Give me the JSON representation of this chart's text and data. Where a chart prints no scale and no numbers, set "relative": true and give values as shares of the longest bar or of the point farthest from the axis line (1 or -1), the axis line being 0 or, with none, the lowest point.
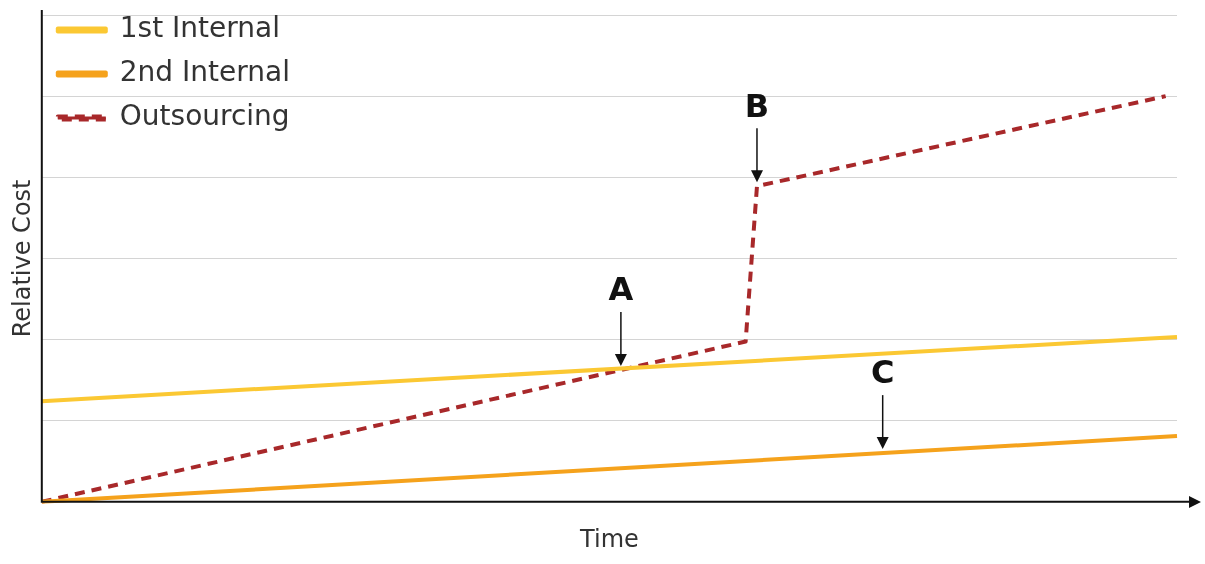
{
  "chart_data": {
    "type": "line",
    "xlabel": "Time",
    "ylabel": "Relative Cost",
    "relative": true,
    "grid": "y",
    "legend": "top left",
    "marker": "none",
    "categories": [
      null,
      null,
      null,
      null,
      null,
      null,
      null,
      null,
      null,
      null,
      null,
      null,
      null,
      null,
      null,
      null,
      null,
      null,
      null,
      null,
      null,
      null,
      null,
      null,
      null,
      null,
      null,
      null,
      null,
      null,
      null,
      null,
      null,
      null,
      null,
      null,
      null,
      null,
      null,
      null,
      null,
      null,
      null,
      null,
      null,
      null,
      null,
      null,
      null,
      null,
      null,
      null,
      null,
      null,
      null,
      null,
      null,
      null,
      null,
      null,
      null,
      null,
      null,
      null,
      null,
      null,
      null,
      null,
      null,
      null,
      null,
      null,
      null,
      null,
      null,
      null,
      null,
      null,
      null,
      null,
      null,
      null,
      null,
      null,
      null,
      null,
      null,
      null,
      null,
      null,
      null,
      null,
      null,
      null,
      null,
      null,
      null,
      null,
      null,
      null,
      null
    ],
    "series": [
      {
        "name": "1st Internal",
        "color": "#fbc833",
        "line_style": "solid",
        "values": [
          0.248,
          null,
          null,
          null,
          null,
          null,
          null,
          null,
          null,
          null,
          null,
          null,
          null,
          null,
          null,
          null,
          null,
          null,
          null,
          null,
          null,
          null,
          null,
          null,
          null,
          null,
          null,
          null,
          null,
          null,
          null,
          null,
          null,
          null,
          null,
          null,
          null,
          null,
          null,
          null,
          null,
          null,
          null,
          null,
          null,
          null,
          null,
          null,
          null,
          null,
          null,
          null,
          null,
          null,
          null,
          null,
          null,
          null,
          null,
          null,
          null,
          null,
          null,
          null,
          null,
          null,
          null,
          null,
          null,
          null,
          null,
          null,
          null,
          null,
          null,
          null,
          null,
          null,
          null,
          null,
          null,
          null,
          null,
          null,
          null,
          null,
          null,
          null,
          null,
          null,
          null,
          null,
          null,
          null,
          null,
          null,
          null,
          null,
          null,
          null,
          0.406
        ]
      },
      {
        "name": "2nd Internal",
        "color": "#f5a21c",
        "line_style": "solid",
        "values": [
          0,
          null,
          null,
          null,
          null,
          null,
          null,
          null,
          null,
          null,
          null,
          null,
          null,
          null,
          null,
          null,
          null,
          null,
          null,
          null,
          null,
          null,
          null,
          null,
          null,
          null,
          null,
          null,
          null,
          null,
          null,
          null,
          null,
          null,
          null,
          null,
          null,
          null,
          null,
          null,
          null,
          null,
          null,
          null,
          null,
          null,
          null,
          null,
          null,
          null,
          null,
          null,
          null,
          null,
          null,
          null,
          null,
          null,
          null,
          null,
          null,
          null,
          null,
          null,
          null,
          null,
          null,
          null,
          null,
          null,
          null,
          null,
          null,
          null,
          null,
          null,
          null,
          null,
          null,
          null,
          null,
          null,
          null,
          null,
          null,
          null,
          null,
          null,
          null,
          null,
          null,
          null,
          null,
          null,
          null,
          null,
          null,
          null,
          null,
          null,
          0.162
        ]
      },
      {
        "name": "Outsourcing",
        "color": "#a8282a",
        "line_style": "dashed",
        "values": [
          0,
          null,
          null,
          null,
          null,
          null,
          null,
          null,
          null,
          null,
          null,
          null,
          null,
          null,
          null,
          null,
          null,
          null,
          null,
          null,
          null,
          null,
          null,
          null,
          null,
          null,
          null,
          null,
          null,
          null,
          null,
          null,
          null,
          null,
          null,
          null,
          null,
          null,
          null,
          null,
          null,
          null,
          null,
          null,
          null,
          null,
          null,
          null,
          null,
          null,
          null,
          null,
          null,
          null,
          null,
          null,
          null,
          null,
          null,
          null,
          null,
          null,
          0.395,
          0.778,
          null,
          null,
          null,
          null,
          null,
          null,
          null,
          null,
          null,
          null,
          null,
          null,
          null,
          null,
          null,
          null,
          null,
          null,
          null,
          null,
          null,
          null,
          null,
          null,
          null,
          null,
          null,
          null,
          null,
          null,
          null,
          null,
          null,
          null,
          null,
          1,
          null
        ]
      }
    ],
    "annotations": [
      {
        "text": "A",
        "y": 0.325
      },
      {
        "text": "B",
        "y": 0.778
      },
      {
        "text": "C",
        "y": 0.12
      }
    ]
  }
}
